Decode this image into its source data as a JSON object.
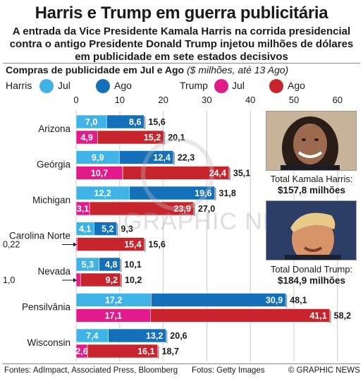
{
  "header": {
    "title": "Harris e Trump em guerra publicitária",
    "subtitle": "A entrada da Vice Presidente Kamala Harris na corrida presidencial contra o antigo Presidente Donald Trump injetou milhões de dólares em publicidade em sete estados decisivos"
  },
  "chart_header": {
    "label": "Compras de publicidade em Jul e Ago",
    "note": "($ milhões, até 13 Ago)"
  },
  "legend": {
    "harris": "Harris",
    "trump": "Trump",
    "jul": "Jul",
    "ago": "Ago"
  },
  "colors": {
    "harris_jul": "#3fb3e6",
    "harris_ago": "#1470b8",
    "trump_jul": "#e01c8a",
    "trump_ago": "#c8242e"
  },
  "chart_data": {
    "type": "bar",
    "orientation": "horizontal",
    "stacked": true,
    "title": "Compras de publicidade em Jul e Ago",
    "unit_note": "($ milhões, até 13 Ago)",
    "xlim": [
      0,
      65
    ],
    "ticks": [
      "0",
      "10",
      "20",
      "30",
      "40",
      "50",
      "60"
    ],
    "tick_values": [
      0,
      10,
      20,
      30,
      40,
      50,
      60
    ],
    "states": [
      {
        "name": "Arizona",
        "harris": {
          "jul": 7.0,
          "ago": 8.6,
          "total": 15.6,
          "jul_label": "7,0",
          "ago_label": "8,6",
          "total_label": "15,6"
        },
        "trump": {
          "jul": 4.9,
          "ago": 15.2,
          "total": 20.1,
          "jul_label": "4,9",
          "ago_label": "15,2",
          "total_label": "20,1"
        }
      },
      {
        "name": "Geórgia",
        "harris": {
          "jul": 9.9,
          "ago": 12.4,
          "total": 22.3,
          "jul_label": "9,9",
          "ago_label": "12,4",
          "total_label": "22,3"
        },
        "trump": {
          "jul": 10.7,
          "ago": 24.4,
          "total": 35.1,
          "jul_label": "10,7",
          "ago_label": "24,4",
          "total_label": "35,1"
        }
      },
      {
        "name": "Michigan",
        "harris": {
          "jul": 12.2,
          "ago": 19.6,
          "total": 31.8,
          "jul_label": "12,2",
          "ago_label": "19,6",
          "total_label": "31,8"
        },
        "trump": {
          "jul": 3.1,
          "ago": 23.9,
          "total": 27.0,
          "jul_label": "3,1",
          "ago_label": "23,9",
          "total_label": "27,0"
        }
      },
      {
        "name": "Carolina Norte",
        "harris": {
          "jul": 4.1,
          "ago": 5.2,
          "total": 9.3,
          "jul_label": "4,1",
          "ago_label": "5,2",
          "total_label": "9,3"
        },
        "trump": {
          "jul": 0.22,
          "ago": 15.4,
          "total": 15.6,
          "jul_label": "0,22",
          "ago_label": "15,4",
          "total_label": "15,6"
        }
      },
      {
        "name": "Nevada",
        "harris": {
          "jul": 5.3,
          "ago": 4.8,
          "total": 10.1,
          "jul_label": "5,3",
          "ago_label": "4,8",
          "total_label": "10,1"
        },
        "trump": {
          "jul": 1.0,
          "ago": 9.2,
          "total": 10.2,
          "jul_label": "1,0",
          "ago_label": "9,2",
          "total_label": "10,2"
        }
      },
      {
        "name": "Pensilvânia",
        "harris": {
          "jul": 17.2,
          "ago": 30.9,
          "total": 48.1,
          "jul_label": "17,2",
          "ago_label": "30,9",
          "total_label": "48,1"
        },
        "trump": {
          "jul": 17.1,
          "ago": 41.1,
          "total": 58.2,
          "jul_label": "17,1",
          "ago_label": "41,1",
          "total_label": "58,2"
        }
      },
      {
        "name": "Wisconsin",
        "harris": {
          "jul": 7.4,
          "ago": 13.2,
          "total": 20.6,
          "jul_label": "7,4",
          "ago_label": "13,2",
          "total_label": "20,6"
        },
        "trump": {
          "jul": 2.6,
          "ago": 16.1,
          "total": 18.7,
          "jul_label": "2,6",
          "ago_label": "16,1",
          "total_label": "18,7"
        }
      }
    ]
  },
  "photos": {
    "harris_caption": "Total Kamala Harris:",
    "harris_total": "$157,8 milhões",
    "trump_caption": "Total Donald Trump:",
    "trump_total": "$184,9 milhões"
  },
  "footer": {
    "sources": "Fontes: AdImpact, Associated Press, Bloomberg",
    "photos": "Fotos: Getty Images",
    "copyright": "© GRAPHIC NEWS"
  },
  "watermark": "GRAPHIC NEWS"
}
